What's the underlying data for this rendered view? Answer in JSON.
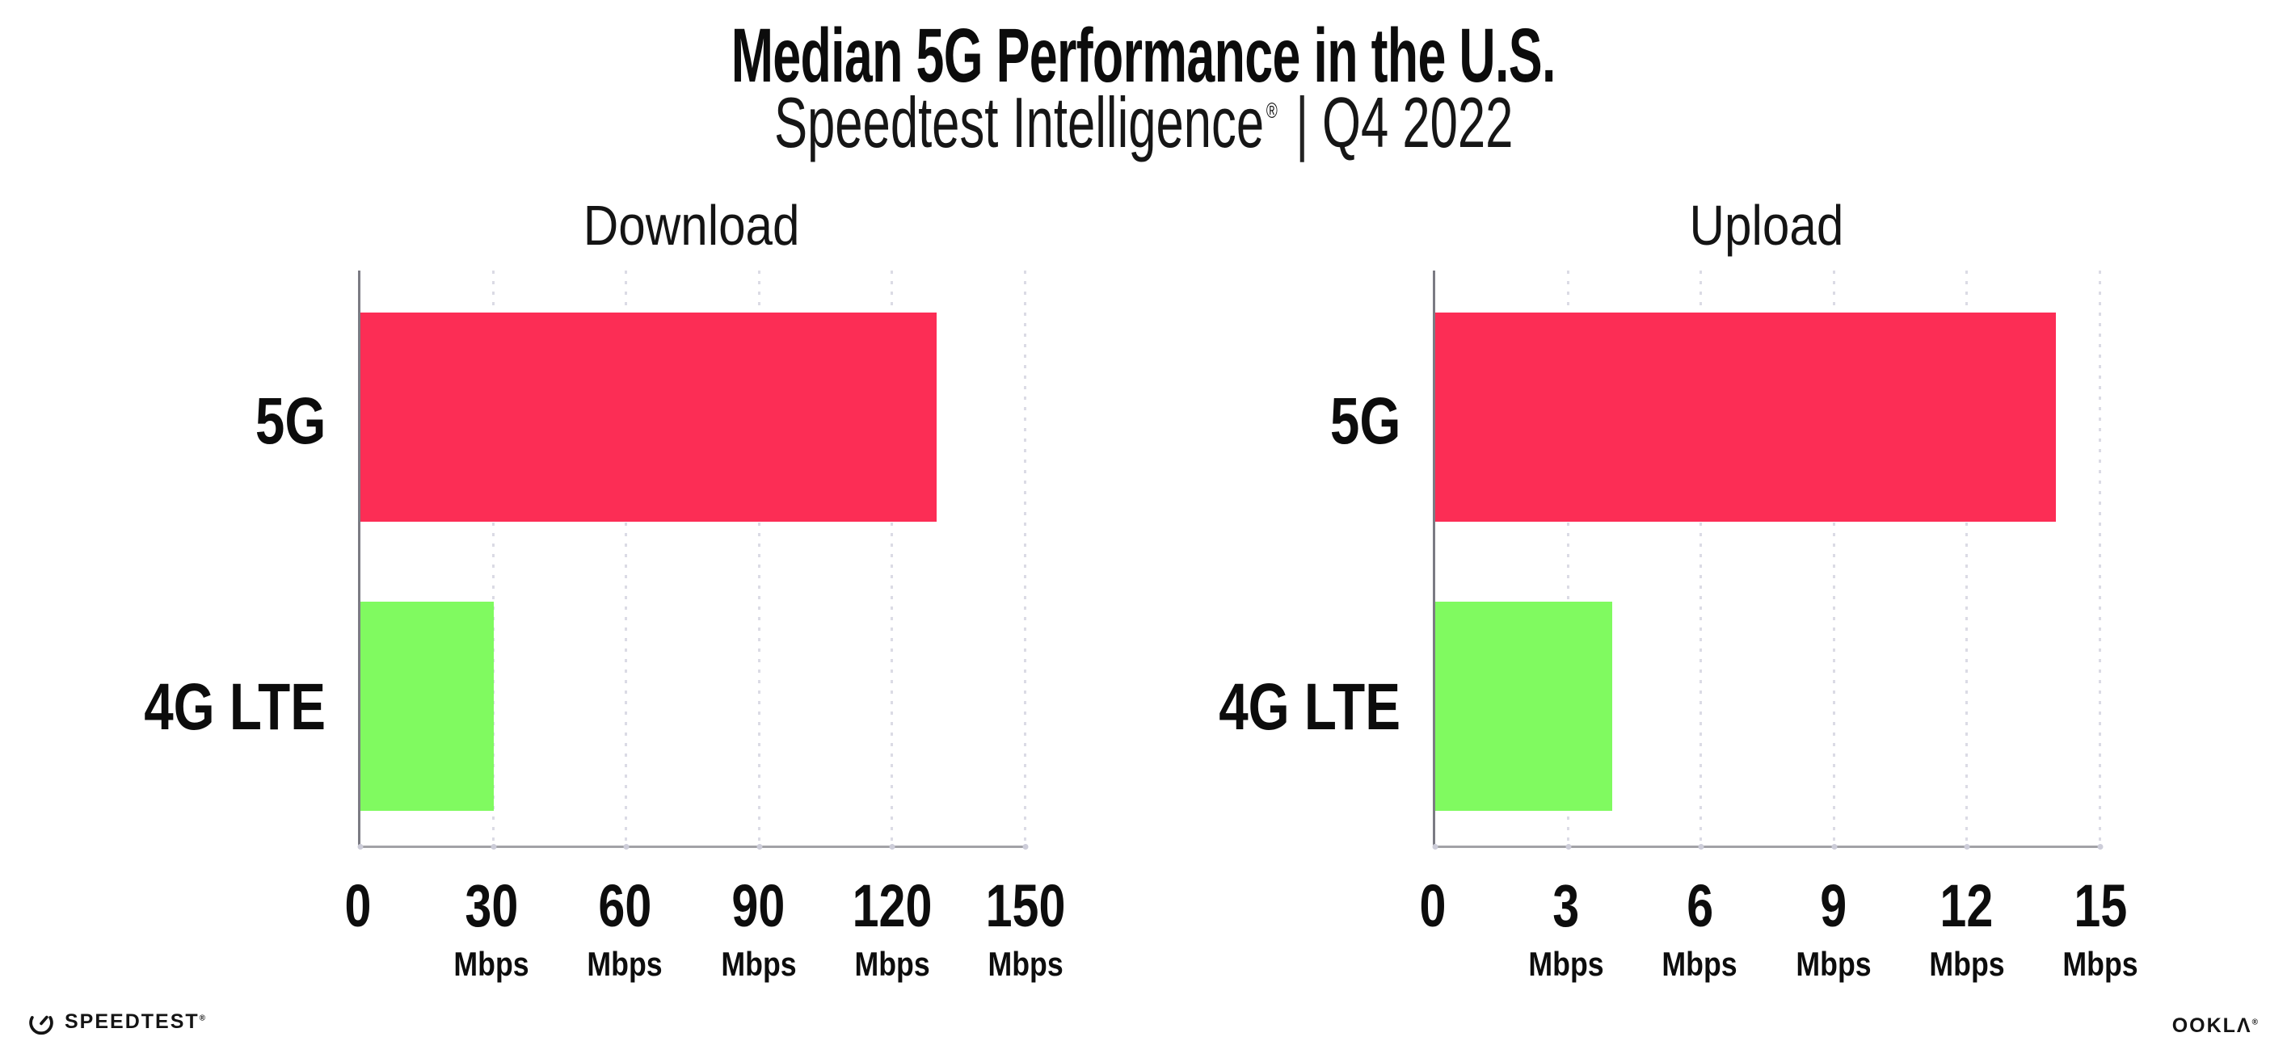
{
  "title": "Median 5G Performance in the U.S.",
  "subtitle": {
    "product": "Speedtest Intelligence",
    "trademark": "®",
    "separator": "|",
    "quarter": "Q4 2022"
  },
  "chart_data": [
    {
      "type": "bar",
      "orientation": "horizontal",
      "title": "Download",
      "categories": [
        "5G",
        "4G LTE"
      ],
      "values": [
        130,
        30
      ],
      "unit": "Mbps",
      "xlim": [
        0,
        150
      ],
      "xticks": [
        0,
        30,
        60,
        90,
        120,
        150
      ],
      "bar_colors": [
        "#FC2D55",
        "#80FA60"
      ],
      "grid": "dotted-vertical",
      "legend": "none"
    },
    {
      "type": "bar",
      "orientation": "horizontal",
      "title": "Upload",
      "categories": [
        "5G",
        "4G LTE"
      ],
      "values": [
        14,
        4
      ],
      "unit": "Mbps",
      "xlim": [
        0,
        15
      ],
      "xticks": [
        0,
        3,
        6,
        9,
        12,
        15
      ],
      "bar_colors": [
        "#FC2D55",
        "#80FA60"
      ],
      "grid": "dotted-vertical",
      "legend": "none"
    }
  ],
  "footer": {
    "speedtest": "SPEEDTEST",
    "speedtest_mark": "®",
    "ookla": "OOKLΛ",
    "ookla_mark": "®"
  },
  "colors": {
    "bar_5g": "#FC2D55",
    "bar_4g_lte": "#80FA60",
    "axis_y": "#7B7B83",
    "axis_x": "#A2A2A7",
    "grid_dots": "#DBDBE5",
    "text": "#0D0D0D",
    "background": "#FFFFFF"
  }
}
